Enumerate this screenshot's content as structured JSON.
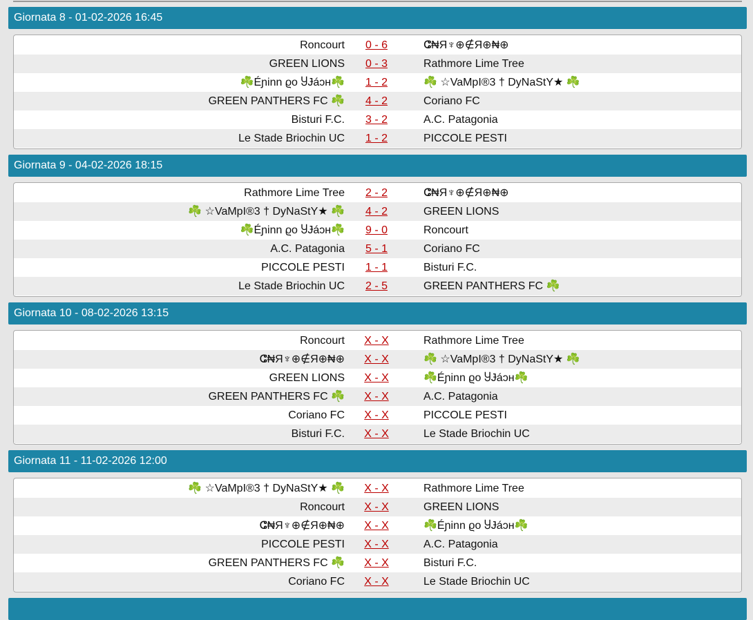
{
  "rounds": [
    {
      "title": "Giornata 8 - 01-02-2026 16:45",
      "matches": [
        {
          "home": "Roncourt",
          "score": "0 - 6",
          "away": "ⵛ₦Я♆⊕∉Я⊕₦⊕"
        },
        {
          "home": "GREEN LIONS",
          "score": "0 - 3",
          "away": "Rathmore Lime Tree"
        },
        {
          "home": "☘️Éɲinn ϱo ႸɈáɔн☘️",
          "score": "1 - 2",
          "away": "☘️ ☆VaMpI®3 † DyNaStY★ ☘️"
        },
        {
          "home": "GREEN PANTHERS FC ☘️",
          "score": "4 - 2",
          "away": "Coriano FC"
        },
        {
          "home": "Bisturi F.C.",
          "score": "3 - 2",
          "away": "A.C. Patagonia"
        },
        {
          "home": "Le Stade Briochin UC",
          "score": "1 - 2",
          "away": "PICCOLE PESTI"
        }
      ]
    },
    {
      "title": "Giornata 9 - 04-02-2026 18:15",
      "matches": [
        {
          "home": "Rathmore Lime Tree",
          "score": "2 - 2",
          "away": "ⵛ₦Я♆⊕∉Я⊕₦⊕"
        },
        {
          "home": "☘️ ☆VaMpI®3 † DyNaStY★ ☘️",
          "score": "4 - 2",
          "away": "GREEN LIONS"
        },
        {
          "home": "☘️Éɲinn ϱo ႸɈáɔн☘️",
          "score": "9 - 0",
          "away": "Roncourt"
        },
        {
          "home": "A.C. Patagonia",
          "score": "5 - 1",
          "away": "Coriano FC"
        },
        {
          "home": "PICCOLE PESTI",
          "score": "1 - 1",
          "away": "Bisturi F.C."
        },
        {
          "home": "Le Stade Briochin UC",
          "score": "2 - 5",
          "away": "GREEN PANTHERS FC ☘️"
        }
      ]
    },
    {
      "title": "Giornata 10 - 08-02-2026 13:15",
      "matches": [
        {
          "home": "Roncourt",
          "score": "X - X",
          "away": "Rathmore Lime Tree"
        },
        {
          "home": "ⵛ₦Я♆⊕∉Я⊕₦⊕",
          "score": "X - X",
          "away": "☘️ ☆VaMpI®3 † DyNaStY★ ☘️"
        },
        {
          "home": "GREEN LIONS",
          "score": "X - X",
          "away": "☘️Éɲinn ϱo ႸɈáɔн☘️"
        },
        {
          "home": "GREEN PANTHERS FC ☘️",
          "score": "X - X",
          "away": "A.C. Patagonia"
        },
        {
          "home": "Coriano FC",
          "score": "X - X",
          "away": "PICCOLE PESTI"
        },
        {
          "home": "Bisturi F.C.",
          "score": "X - X",
          "away": "Le Stade Briochin UC"
        }
      ]
    },
    {
      "title": "Giornata 11 - 11-02-2026 12:00",
      "matches": [
        {
          "home": "☘️ ☆VaMpI®3 † DyNaStY★ ☘️",
          "score": "X - X",
          "away": "Rathmore Lime Tree"
        },
        {
          "home": "Roncourt",
          "score": "X - X",
          "away": "GREEN LIONS"
        },
        {
          "home": "ⵛ₦Я♆⊕∉Я⊕₦⊕",
          "score": "X - X",
          "away": "☘️Éɲinn ϱo ႸɈáɔн☘️"
        },
        {
          "home": "PICCOLE PESTI",
          "score": "X - X",
          "away": "A.C. Patagonia"
        },
        {
          "home": "GREEN PANTHERS FC ☘️",
          "score": "X - X",
          "away": "Bisturi F.C."
        },
        {
          "home": "Coriano FC",
          "score": "X - X",
          "away": "Le Stade Briochin UC"
        }
      ]
    }
  ]
}
